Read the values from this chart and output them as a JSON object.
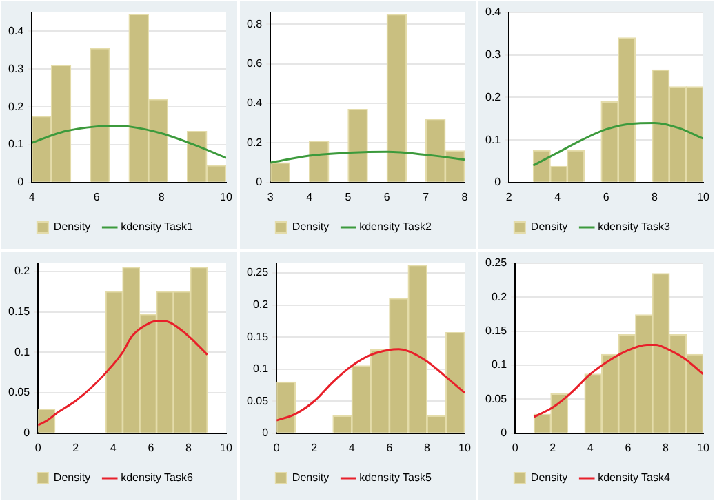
{
  "chart_data": [
    {
      "type": "histogram",
      "bins": [
        4,
        4.6,
        5.2,
        5.8,
        6.4,
        7,
        7.6,
        8.2,
        8.8,
        9.4,
        10
      ],
      "xlim": [
        4,
        10
      ],
      "xticks": [
        4,
        6,
        8,
        10
      ],
      "ylim": [
        0,
        0.45
      ],
      "yticks": [
        0,
        0.1,
        0.2,
        0.3,
        0.4
      ],
      "grid": "y",
      "legend": "bottom",
      "series": [
        {
          "name": "Density",
          "color": "#c9bf80",
          "values": [
            0.175,
            0.31,
            0,
            0.355,
            0,
            0.445,
            0.22,
            0,
            0.135,
            0.045
          ]
        },
        {
          "type": "line",
          "name": "kdensity Task1",
          "color": "#3c9a3c",
          "x": [
            4,
            5,
            6,
            6.5,
            7,
            8,
            9,
            10
          ],
          "values": [
            0.105,
            0.135,
            0.148,
            0.15,
            0.148,
            0.13,
            0.1,
            0.065
          ]
        }
      ]
    },
    {
      "type": "histogram",
      "bins": [
        3,
        3.5,
        4,
        4.5,
        5,
        5.5,
        6,
        6.5,
        7,
        7.5,
        8
      ],
      "xlim": [
        3,
        8
      ],
      "xticks": [
        3,
        4,
        5,
        6,
        7,
        8
      ],
      "ylim": [
        0,
        0.86
      ],
      "yticks": [
        0,
        0.2,
        0.4,
        0.6,
        0.8
      ],
      "grid": "y",
      "legend": "bottom",
      "series": [
        {
          "name": "Density",
          "color": "#c9bf80",
          "values": [
            0.1,
            0,
            0.21,
            0,
            0.37,
            0,
            0.85,
            0,
            0.32,
            0.16
          ]
        },
        {
          "type": "line",
          "name": "kdensity Task2",
          "color": "#3c9a3c",
          "x": [
            3,
            4,
            5,
            6,
            7,
            8
          ],
          "values": [
            0.1,
            0.135,
            0.15,
            0.155,
            0.14,
            0.115
          ]
        }
      ]
    },
    {
      "type": "histogram",
      "bins": [
        3,
        3.7,
        4.4,
        5.1,
        5.8,
        6.5,
        7.2,
        7.9,
        8.6,
        9.3,
        10
      ],
      "xlim": [
        2,
        10
      ],
      "xticks": [
        2,
        4,
        6,
        8,
        10
      ],
      "ylim": [
        0,
        0.4
      ],
      "yticks": [
        0,
        0.1,
        0.2,
        0.3,
        0.4
      ],
      "grid": "y",
      "legend": "bottom",
      "series": [
        {
          "name": "Density",
          "color": "#c9bf80",
          "values": [
            0.075,
            0.038,
            0.075,
            0,
            0.19,
            0.34,
            0,
            0.265,
            0.225,
            0.225
          ]
        },
        {
          "type": "line",
          "name": "kdensity Task3",
          "color": "#3c9a3c",
          "x": [
            3,
            4,
            5,
            6,
            7,
            8,
            9,
            10
          ],
          "values": [
            0.04,
            0.07,
            0.1,
            0.125,
            0.138,
            0.14,
            0.128,
            0.103
          ]
        }
      ]
    },
    {
      "type": "histogram",
      "bins": [
        0,
        0.9,
        1.8,
        2.7,
        3.6,
        4.5,
        5.4,
        6.3,
        7.2,
        8.1,
        9
      ],
      "xlim": [
        0,
        10
      ],
      "xticks": [
        0,
        2,
        4,
        6,
        8,
        10
      ],
      "ylim": [
        0,
        0.21
      ],
      "yticks": [
        0,
        0.05,
        0.1,
        0.15,
        0.2
      ],
      "grid": "y",
      "legend": "bottom",
      "series": [
        {
          "name": "Density",
          "color": "#c9bf80",
          "values": [
            0.03,
            0,
            0,
            0,
            0.175,
            0.205,
            0.147,
            0.175,
            0.175,
            0.205
          ]
        },
        {
          "type": "line",
          "name": "kdensity Task6",
          "color": "#e8202a",
          "x": [
            0,
            0.5,
            1,
            2,
            3,
            4,
            4.5,
            5,
            6,
            6.5,
            7,
            8,
            9
          ],
          "values": [
            0.01,
            0.016,
            0.025,
            0.04,
            0.06,
            0.085,
            0.1,
            0.12,
            0.137,
            0.139,
            0.137,
            0.12,
            0.097
          ]
        }
      ]
    },
    {
      "type": "histogram",
      "bins": [
        0,
        1,
        2,
        3,
        4,
        5,
        6,
        7,
        8,
        9,
        10
      ],
      "xlim": [
        0,
        10
      ],
      "xticks": [
        0,
        2,
        4,
        6,
        8,
        10
      ],
      "ylim": [
        0,
        0.265
      ],
      "yticks": [
        0,
        0.05,
        0.1,
        0.15,
        0.2,
        0.25
      ],
      "grid": "y",
      "legend": "bottom",
      "series": [
        {
          "name": "Density",
          "color": "#c9bf80",
          "values": [
            0.08,
            0,
            0,
            0.027,
            0.105,
            0.13,
            0.21,
            0.262,
            0.027,
            0.157
          ]
        },
        {
          "type": "line",
          "name": "kdensity Task5",
          "color": "#e8202a",
          "x": [
            0,
            1,
            2,
            3,
            4,
            5,
            6,
            6.5,
            7,
            8,
            9,
            10
          ],
          "values": [
            0.02,
            0.03,
            0.05,
            0.08,
            0.105,
            0.122,
            0.13,
            0.131,
            0.128,
            0.112,
            0.088,
            0.063
          ]
        }
      ]
    },
    {
      "type": "histogram",
      "bins": [
        1,
        1.9,
        2.8,
        3.7,
        4.6,
        5.5,
        6.4,
        7.3,
        8.2,
        9.1,
        10
      ],
      "xlim": [
        0,
        10
      ],
      "xticks": [
        0,
        2,
        4,
        6,
        8,
        10
      ],
      "ylim": [
        0,
        0.25
      ],
      "yticks": [
        0,
        0.05,
        0.1,
        0.15,
        0.2,
        0.25
      ],
      "grid": "y",
      "legend": "bottom",
      "series": [
        {
          "name": "Density",
          "color": "#c9bf80",
          "values": [
            0.028,
            0.058,
            0,
            0.087,
            0.116,
            0.145,
            0.174,
            0.235,
            0.145,
            0.116
          ]
        },
        {
          "type": "line",
          "name": "kdensity Task4",
          "color": "#e8202a",
          "x": [
            1,
            2,
            3,
            4,
            5,
            6,
            7,
            7.5,
            8,
            9,
            10
          ],
          "values": [
            0.024,
            0.038,
            0.06,
            0.087,
            0.107,
            0.122,
            0.13,
            0.13,
            0.125,
            0.11,
            0.087
          ]
        }
      ]
    }
  ]
}
